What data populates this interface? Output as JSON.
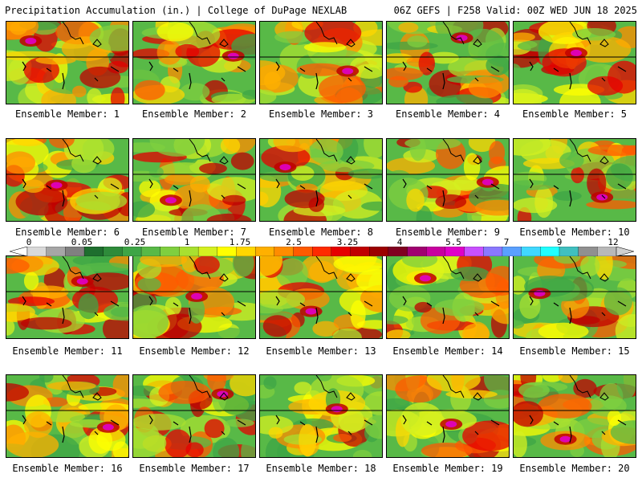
{
  "header": {
    "left": "Precipitation Accumulation (in.) | College of DuPage NEXLAB",
    "right": "06Z GEFS | F258 Valid: 00Z WED JUN 18 2025"
  },
  "colorbar": {
    "labels": [
      "0",
      "0.05",
      "0.25",
      "1",
      "1.75",
      "2.5",
      "3.25",
      "4",
      "5.5",
      "7",
      "9",
      "12"
    ],
    "colors": [
      "#ffffff",
      "#d9d9d9",
      "#a6a6a6",
      "#808080",
      "#1e6e2e",
      "#2e8b3a",
      "#3ea546",
      "#58b947",
      "#7fcf3f",
      "#a8e030",
      "#d4f020",
      "#ffff00",
      "#ffd700",
      "#ffb000",
      "#ff8c00",
      "#ff5a00",
      "#ff2a00",
      "#e60000",
      "#c00000",
      "#9c0000",
      "#800020",
      "#a00070",
      "#c800a0",
      "#e000c8",
      "#c850ff",
      "#8a78ff",
      "#5aa0ff",
      "#40d8ff",
      "#20ffff",
      "#40c0c0",
      "#909090",
      "#b8b8b8",
      "#d0d0d0"
    ]
  },
  "panels": [
    {
      "label": "Ensemble Member: 1"
    },
    {
      "label": "Ensemble Member: 2"
    },
    {
      "label": "Ensemble Member: 3"
    },
    {
      "label": "Ensemble Member: 4"
    },
    {
      "label": "Ensemble Member: 5"
    },
    {
      "label": "Ensemble Member: 6"
    },
    {
      "label": "Ensemble Member: 7"
    },
    {
      "label": "Ensemble Member: 8"
    },
    {
      "label": "Ensemble Member: 9"
    },
    {
      "label": "Ensemble Member: 10"
    },
    {
      "label": "Ensemble Member: 11"
    },
    {
      "label": "Ensemble Member: 12"
    },
    {
      "label": "Ensemble Member: 13"
    },
    {
      "label": "Ensemble Member: 14"
    },
    {
      "label": "Ensemble Member: 15"
    },
    {
      "label": "Ensemble Member: 16"
    },
    {
      "label": "Ensemble Member: 17"
    },
    {
      "label": "Ensemble Member: 18"
    },
    {
      "label": "Ensemble Member: 19"
    },
    {
      "label": "Ensemble Member: 20"
    }
  ]
}
